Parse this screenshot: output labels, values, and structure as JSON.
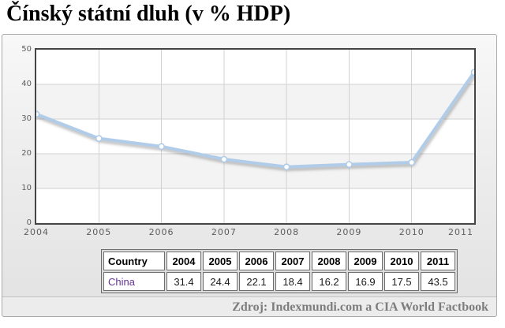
{
  "page": {
    "title": "Čínský státní dluh (v % HDP)"
  },
  "chart_data": {
    "type": "line",
    "title": "Čínský státní dluh (v % HDP)",
    "categories": [
      "2004",
      "2005",
      "2006",
      "2007",
      "2008",
      "2009",
      "2010",
      "2011"
    ],
    "series": [
      {
        "name": "China",
        "values": [
          31.4,
          24.4,
          22.1,
          18.4,
          16.2,
          16.9,
          17.5,
          43.5
        ]
      }
    ],
    "ylabel": "",
    "xlabel": "",
    "ylim": [
      0,
      50
    ],
    "yticks": [
      50,
      40,
      30,
      20,
      10,
      0
    ],
    "grid": true,
    "legend": "none",
    "line_color": "#b0cce8",
    "marker_fill": "#ffffff",
    "band_color": "#f3f3f3",
    "gridline_color": "#d2d2d2"
  },
  "table": {
    "header": [
      "Country",
      "2004",
      "2005",
      "2006",
      "2007",
      "2008",
      "2009",
      "2010",
      "2011"
    ],
    "rows": [
      {
        "country": "China",
        "values": [
          "31.4",
          "24.4",
          "22.1",
          "18.4",
          "16.2",
          "16.9",
          "17.5",
          "43.5"
        ]
      }
    ]
  },
  "footer": {
    "source_label": "Zdroj: Indexmundi.com a CIA World Factbook"
  }
}
